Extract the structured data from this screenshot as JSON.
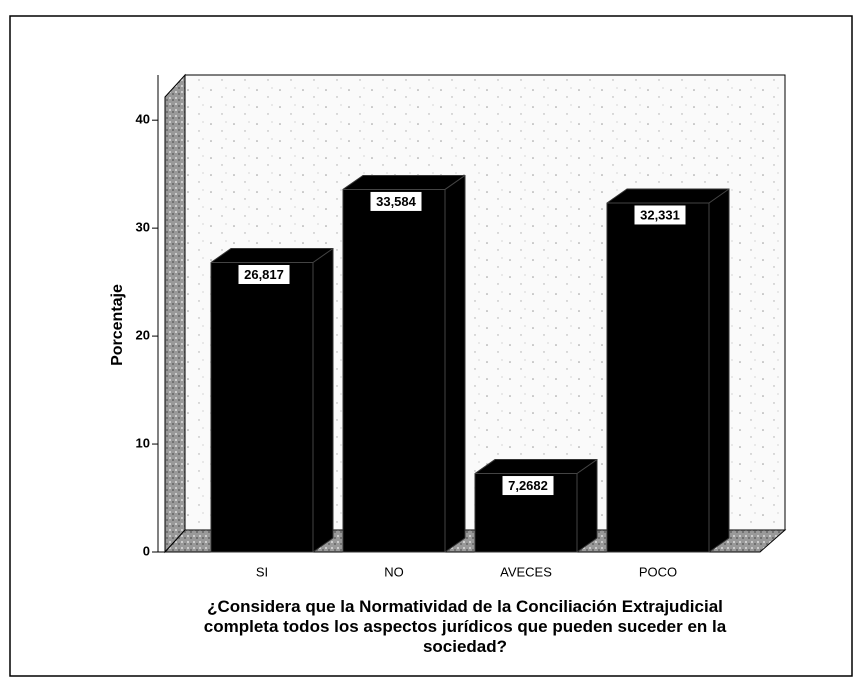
{
  "chart_data": {
    "type": "bar3d",
    "categories": [
      "SI",
      "NO",
      "AVECES",
      "POCO"
    ],
    "values": [
      26.817,
      33.584,
      7.2682,
      32.331
    ],
    "value_labels": [
      "26,817",
      "33,584",
      "7,2682",
      "32,331"
    ],
    "color": "#000000",
    "ylabel": "Porcentaje",
    "xlabel": "¿Considera que la Normatividad de la Conciliación Extrajudicial completa todos los aspectos jurídicos que pueden suceder en la sociedad?",
    "ylim": [
      0,
      44
    ],
    "yticks": [
      0,
      10,
      20,
      30,
      40
    ]
  }
}
